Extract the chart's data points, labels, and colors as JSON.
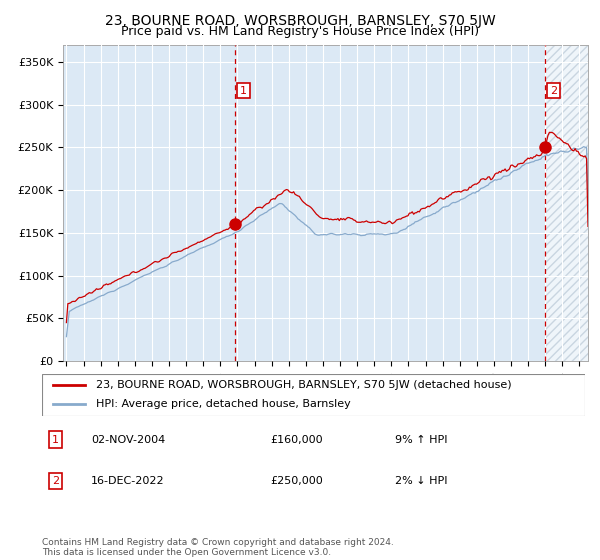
{
  "title": "23, BOURNE ROAD, WORSBROUGH, BARNSLEY, S70 5JW",
  "subtitle": "Price paid vs. HM Land Registry's House Price Index (HPI)",
  "title_fontsize": 10,
  "subtitle_fontsize": 9,
  "bg_color": "#dce9f5",
  "grid_color": "#ffffff",
  "red_line_color": "#cc0000",
  "blue_line_color": "#88aacc",
  "marker_color": "#cc0000",
  "dashed_line_color": "#cc0000",
  "sale1_x": 2004.84,
  "sale1_y": 160000,
  "sale1_label": "1",
  "sale2_x": 2022.96,
  "sale2_y": 250000,
  "sale2_label": "2",
  "ylim": [
    0,
    370000
  ],
  "xlim_start": 1994.8,
  "xlim_end": 2025.5,
  "yticks": [
    0,
    50000,
    100000,
    150000,
    200000,
    250000,
    300000,
    350000
  ],
  "ytick_labels": [
    "£0",
    "£50K",
    "£100K",
    "£150K",
    "£200K",
    "£250K",
    "£300K",
    "£350K"
  ],
  "xticks": [
    1995,
    1996,
    1997,
    1998,
    1999,
    2000,
    2001,
    2002,
    2003,
    2004,
    2005,
    2006,
    2007,
    2008,
    2009,
    2010,
    2011,
    2012,
    2013,
    2014,
    2015,
    2016,
    2017,
    2018,
    2019,
    2020,
    2021,
    2022,
    2023,
    2024,
    2025
  ],
  "legend_line1": "23, BOURNE ROAD, WORSBROUGH, BARNSLEY, S70 5JW (detached house)",
  "legend_line2": "HPI: Average price, detached house, Barnsley",
  "annotation1_date": "02-NOV-2004",
  "annotation1_price": "£160,000",
  "annotation1_hpi": "9% ↑ HPI",
  "annotation2_date": "16-DEC-2022",
  "annotation2_price": "£250,000",
  "annotation2_hpi": "2% ↓ HPI",
  "footer": "Contains HM Land Registry data © Crown copyright and database right 2024.\nThis data is licensed under the Open Government Licence v3.0."
}
